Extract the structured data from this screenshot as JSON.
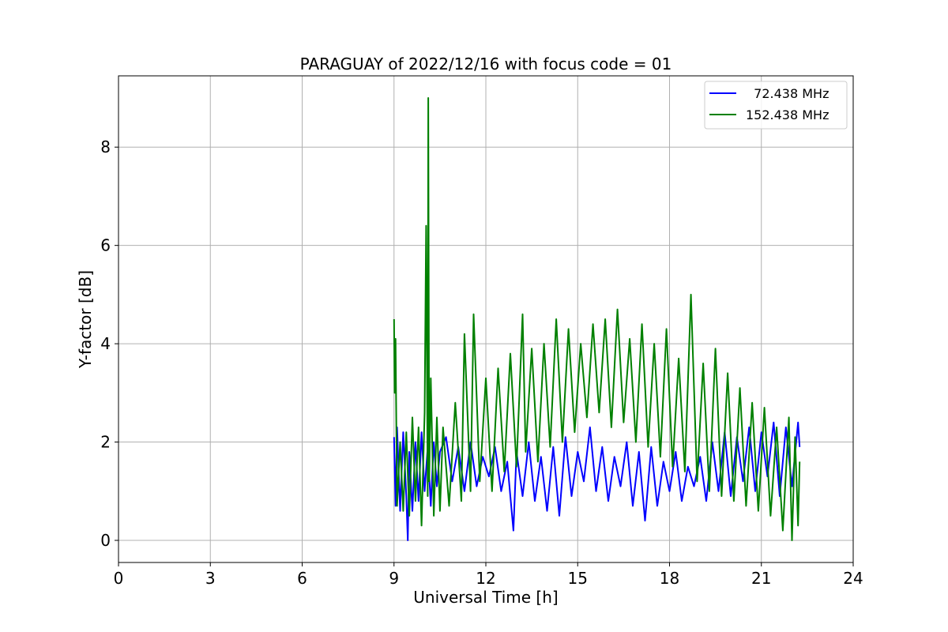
{
  "chart_data": {
    "type": "line",
    "title": "PARAGUAY of 2022/12/16 with focus code = 01",
    "xlabel": "Universal Time [h]",
    "ylabel": "Y-factor [dB]",
    "xlim": [
      0,
      24
    ],
    "ylim": [
      -0.45,
      9.45
    ],
    "xticks": [
      0,
      3,
      6,
      9,
      12,
      15,
      18,
      21,
      24
    ],
    "yticks": [
      0,
      2,
      4,
      6,
      8
    ],
    "grid": true,
    "legend_position": "top-right",
    "series": [
      {
        "name": "  72.438 MHz",
        "color": "#0000ff",
        "x": [
          9.0,
          9.05,
          9.1,
          9.2,
          9.3,
          9.4,
          9.45,
          9.5,
          9.6,
          9.7,
          9.8,
          9.9,
          10.0,
          10.1,
          10.2,
          10.3,
          10.4,
          10.5,
          10.7,
          10.9,
          11.1,
          11.3,
          11.5,
          11.7,
          11.9,
          12.1,
          12.3,
          12.5,
          12.7,
          12.9,
          13.0,
          13.2,
          13.4,
          13.6,
          13.8,
          14.0,
          14.2,
          14.4,
          14.6,
          14.8,
          15.0,
          15.2,
          15.4,
          15.6,
          15.8,
          16.0,
          16.2,
          16.4,
          16.6,
          16.8,
          17.0,
          17.2,
          17.4,
          17.6,
          17.8,
          18.0,
          18.2,
          18.4,
          18.6,
          18.8,
          19.0,
          19.2,
          19.4,
          19.6,
          19.8,
          20.0,
          20.2,
          20.4,
          20.6,
          20.8,
          21.0,
          21.2,
          21.4,
          21.6,
          21.8,
          22.0,
          22.2,
          22.25
        ],
        "y": [
          2.1,
          0.7,
          2.3,
          0.6,
          2.2,
          0.9,
          0.0,
          1.8,
          0.6,
          2.0,
          0.8,
          2.2,
          1.0,
          1.9,
          0.7,
          2.0,
          1.1,
          1.8,
          2.1,
          1.2,
          1.9,
          1.0,
          2.0,
          1.1,
          1.7,
          1.3,
          1.9,
          1.0,
          1.6,
          0.2,
          1.8,
          0.9,
          2.0,
          0.8,
          1.7,
          0.6,
          1.9,
          0.5,
          2.1,
          0.9,
          1.8,
          1.2,
          2.3,
          1.0,
          1.9,
          0.8,
          1.7,
          1.1,
          2.0,
          0.7,
          1.8,
          0.4,
          1.9,
          0.7,
          1.6,
          1.0,
          1.8,
          0.8,
          1.5,
          1.1,
          1.7,
          0.8,
          2.0,
          1.0,
          2.2,
          0.9,
          2.1,
          1.2,
          2.3,
          1.0,
          2.2,
          1.3,
          2.4,
          0.9,
          2.3,
          1.1,
          2.4,
          1.9
        ]
      },
      {
        "name": "152.438 MHz",
        "color": "#008000",
        "x": [
          9.0,
          9.02,
          9.05,
          9.1,
          9.2,
          9.3,
          9.4,
          9.5,
          9.6,
          9.7,
          9.8,
          9.9,
          10.0,
          10.05,
          10.1,
          10.12,
          10.15,
          10.2,
          10.3,
          10.4,
          10.5,
          10.6,
          10.8,
          11.0,
          11.2,
          11.3,
          11.5,
          11.6,
          11.8,
          12.0,
          12.2,
          12.4,
          12.6,
          12.8,
          13.0,
          13.2,
          13.3,
          13.5,
          13.7,
          13.9,
          14.1,
          14.3,
          14.5,
          14.7,
          14.9,
          15.1,
          15.3,
          15.5,
          15.7,
          15.9,
          16.1,
          16.3,
          16.5,
          16.7,
          16.9,
          17.1,
          17.3,
          17.5,
          17.7,
          17.9,
          18.1,
          18.3,
          18.5,
          18.7,
          18.9,
          19.1,
          19.3,
          19.5,
          19.7,
          19.9,
          20.1,
          20.3,
          20.5,
          20.7,
          20.9,
          21.1,
          21.3,
          21.5,
          21.7,
          21.9,
          22.0,
          22.1,
          22.2,
          22.25
        ],
        "y": [
          4.5,
          3.0,
          4.1,
          0.7,
          2.0,
          0.6,
          2.2,
          0.5,
          2.5,
          0.8,
          2.3,
          0.3,
          2.6,
          6.4,
          0.9,
          9.0,
          1.2,
          3.3,
          0.5,
          2.5,
          0.6,
          2.3,
          0.7,
          2.8,
          0.8,
          4.2,
          1.0,
          4.6,
          1.2,
          3.3,
          1.0,
          3.5,
          1.4,
          3.8,
          1.5,
          4.6,
          1.8,
          3.9,
          1.6,
          4.0,
          1.9,
          4.5,
          2.0,
          4.3,
          2.2,
          4.0,
          2.5,
          4.4,
          2.6,
          4.5,
          2.3,
          4.7,
          2.4,
          4.1,
          2.0,
          4.4,
          1.9,
          4.0,
          1.7,
          4.3,
          1.5,
          3.7,
          1.4,
          5.0,
          1.2,
          3.6,
          1.0,
          3.9,
          0.9,
          3.4,
          0.8,
          3.1,
          0.7,
          2.8,
          0.6,
          2.7,
          0.5,
          2.3,
          0.2,
          2.5,
          0.0,
          2.1,
          0.3,
          1.6
        ]
      }
    ]
  }
}
